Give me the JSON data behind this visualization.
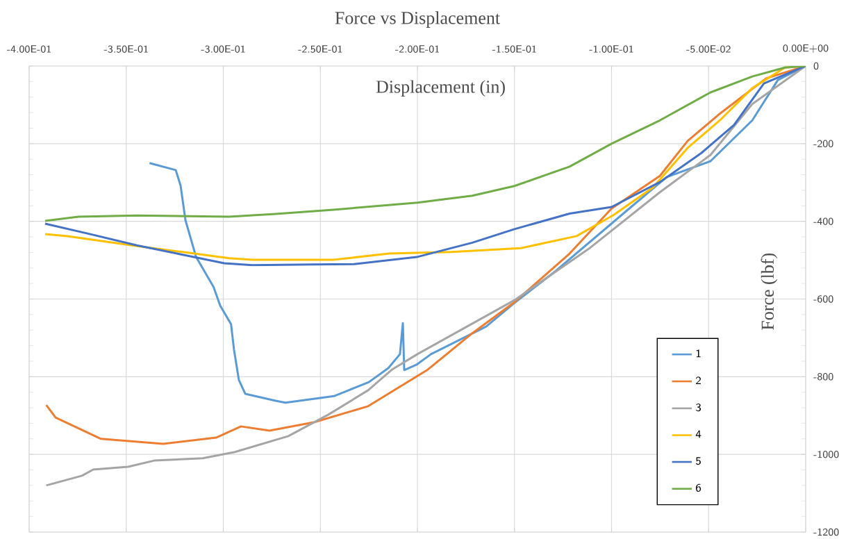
{
  "chart_data": {
    "type": "line",
    "title": "Force vs Displacement",
    "xlabel": "Displacement (in)",
    "ylabel": "Force (lbf)",
    "xlim": [
      -0.4,
      0
    ],
    "ylim": [
      -1200,
      0
    ],
    "xticks": [
      {
        "value": -0.4,
        "label": "-4.00E-01"
      },
      {
        "value": -0.35,
        "label": "-3.50E-01"
      },
      {
        "value": -0.3,
        "label": "-3.00E-01"
      },
      {
        "value": -0.25,
        "label": "-2.50E-01"
      },
      {
        "value": -0.2,
        "label": "-2.00E-01"
      },
      {
        "value": -0.15,
        "label": "-1.50E-01"
      },
      {
        "value": -0.1,
        "label": "-1.00E-01"
      },
      {
        "value": -0.05,
        "label": "-5.00E-02"
      },
      {
        "value": 0,
        "label": "0.00E+00"
      }
    ],
    "yticks": [
      0,
      -200,
      -400,
      -600,
      -800,
      -1000,
      -1200
    ],
    "grid": true,
    "legend": "bottom right",
    "marker": "none",
    "line_style": "solid",
    "series": [
      {
        "name": "1",
        "color": "#5b9bd5",
        "x": [
          -0.338,
          -0.3245,
          -0.322,
          -0.3195,
          -0.314,
          -0.305,
          -0.3016,
          -0.296,
          -0.2945,
          -0.292,
          -0.2887,
          -0.273,
          -0.268,
          -0.243,
          -0.225,
          -0.215,
          -0.209,
          -0.2075,
          -0.2068,
          -0.2004,
          -0.193,
          -0.1646,
          -0.15,
          -0.1288,
          -0.093,
          -0.0716,
          -0.049,
          -0.0275,
          -0.0143,
          0
        ],
        "values": [
          -250,
          -268,
          -308,
          -397,
          -492,
          -569,
          -617,
          -665,
          -730,
          -808,
          -844,
          -862,
          -867,
          -850,
          -814,
          -778,
          -742,
          -662,
          -783,
          -769,
          -742,
          -671,
          -610,
          -528,
          -376,
          -286,
          -245,
          -140,
          -36,
          0
        ]
      },
      {
        "name": "2",
        "color": "#ed7d31",
        "x": [
          -0.3912,
          -0.3864,
          -0.363,
          -0.331,
          -0.3037,
          -0.2909,
          -0.2762,
          -0.253,
          -0.2254,
          -0.195,
          -0.1717,
          -0.15,
          -0.1216,
          -0.1,
          -0.0751,
          -0.0608,
          -0.044,
          -0.0204,
          0
        ],
        "values": [
          -873,
          -905,
          -960,
          -973,
          -957,
          -928,
          -939,
          -917,
          -876,
          -783,
          -688,
          -608,
          -483,
          -367,
          -283,
          -193,
          -122,
          -32,
          0
        ]
      },
      {
        "name": "3",
        "color": "#a5a5a5",
        "x": [
          -0.3912,
          -0.3728,
          -0.367,
          -0.349,
          -0.3356,
          -0.3106,
          -0.294,
          -0.2665,
          -0.246,
          -0.2254,
          -0.2129,
          -0.2,
          -0.15,
          -0.111,
          -0.0751,
          -0.049,
          -0.0275,
          0
        ],
        "values": [
          -1080,
          -1055,
          -1039,
          -1032,
          -1016,
          -1010,
          -994,
          -953,
          -898,
          -835,
          -781,
          -742,
          -603,
          -468,
          -325,
          -229,
          -98,
          0
        ]
      },
      {
        "name": "4",
        "color": "#ffc000",
        "x": [
          -0.3918,
          -0.3803,
          -0.347,
          -0.3209,
          -0.297,
          -0.285,
          -0.2433,
          -0.2147,
          -0.1825,
          -0.1467,
          -0.118,
          -0.0991,
          -0.0787,
          -0.0608,
          -0.044,
          -0.0275,
          -0.0107,
          0
        ],
        "values": [
          -433,
          -438,
          -462,
          -479,
          -495,
          -499,
          -499,
          -483,
          -479,
          -469,
          -438,
          -384,
          -313,
          -211,
          -139,
          -57,
          -4,
          0
        ]
      },
      {
        "name": "5",
        "color": "#4472c4",
        "x": [
          -0.3918,
          -0.3685,
          -0.3445,
          -0.3209,
          -0.2995,
          -0.285,
          -0.254,
          -0.2326,
          -0.2004,
          -0.1717,
          -0.15,
          -0.1216,
          -0.1,
          -0.0751,
          -0.0537,
          -0.0369,
          -0.0215,
          0
        ],
        "values": [
          -406,
          -433,
          -462,
          -486,
          -508,
          -513,
          -511,
          -510,
          -492,
          -455,
          -420,
          -380,
          -363,
          -299,
          -224,
          -152,
          -45,
          0
        ]
      },
      {
        "name": "6",
        "color": "#70ad47",
        "x": [
          -0.3918,
          -0.3746,
          -0.3445,
          -0.297,
          -0.273,
          -0.2433,
          -0.2,
          -0.1717,
          -0.15,
          -0.1216,
          -0.1,
          -0.0751,
          -0.049,
          -0.0275,
          -0.0107,
          0
        ],
        "values": [
          -399,
          -388,
          -385,
          -388,
          -381,
          -370,
          -352,
          -334,
          -309,
          -259,
          -200,
          -140,
          -68,
          -27,
          -4,
          0
        ]
      }
    ]
  }
}
